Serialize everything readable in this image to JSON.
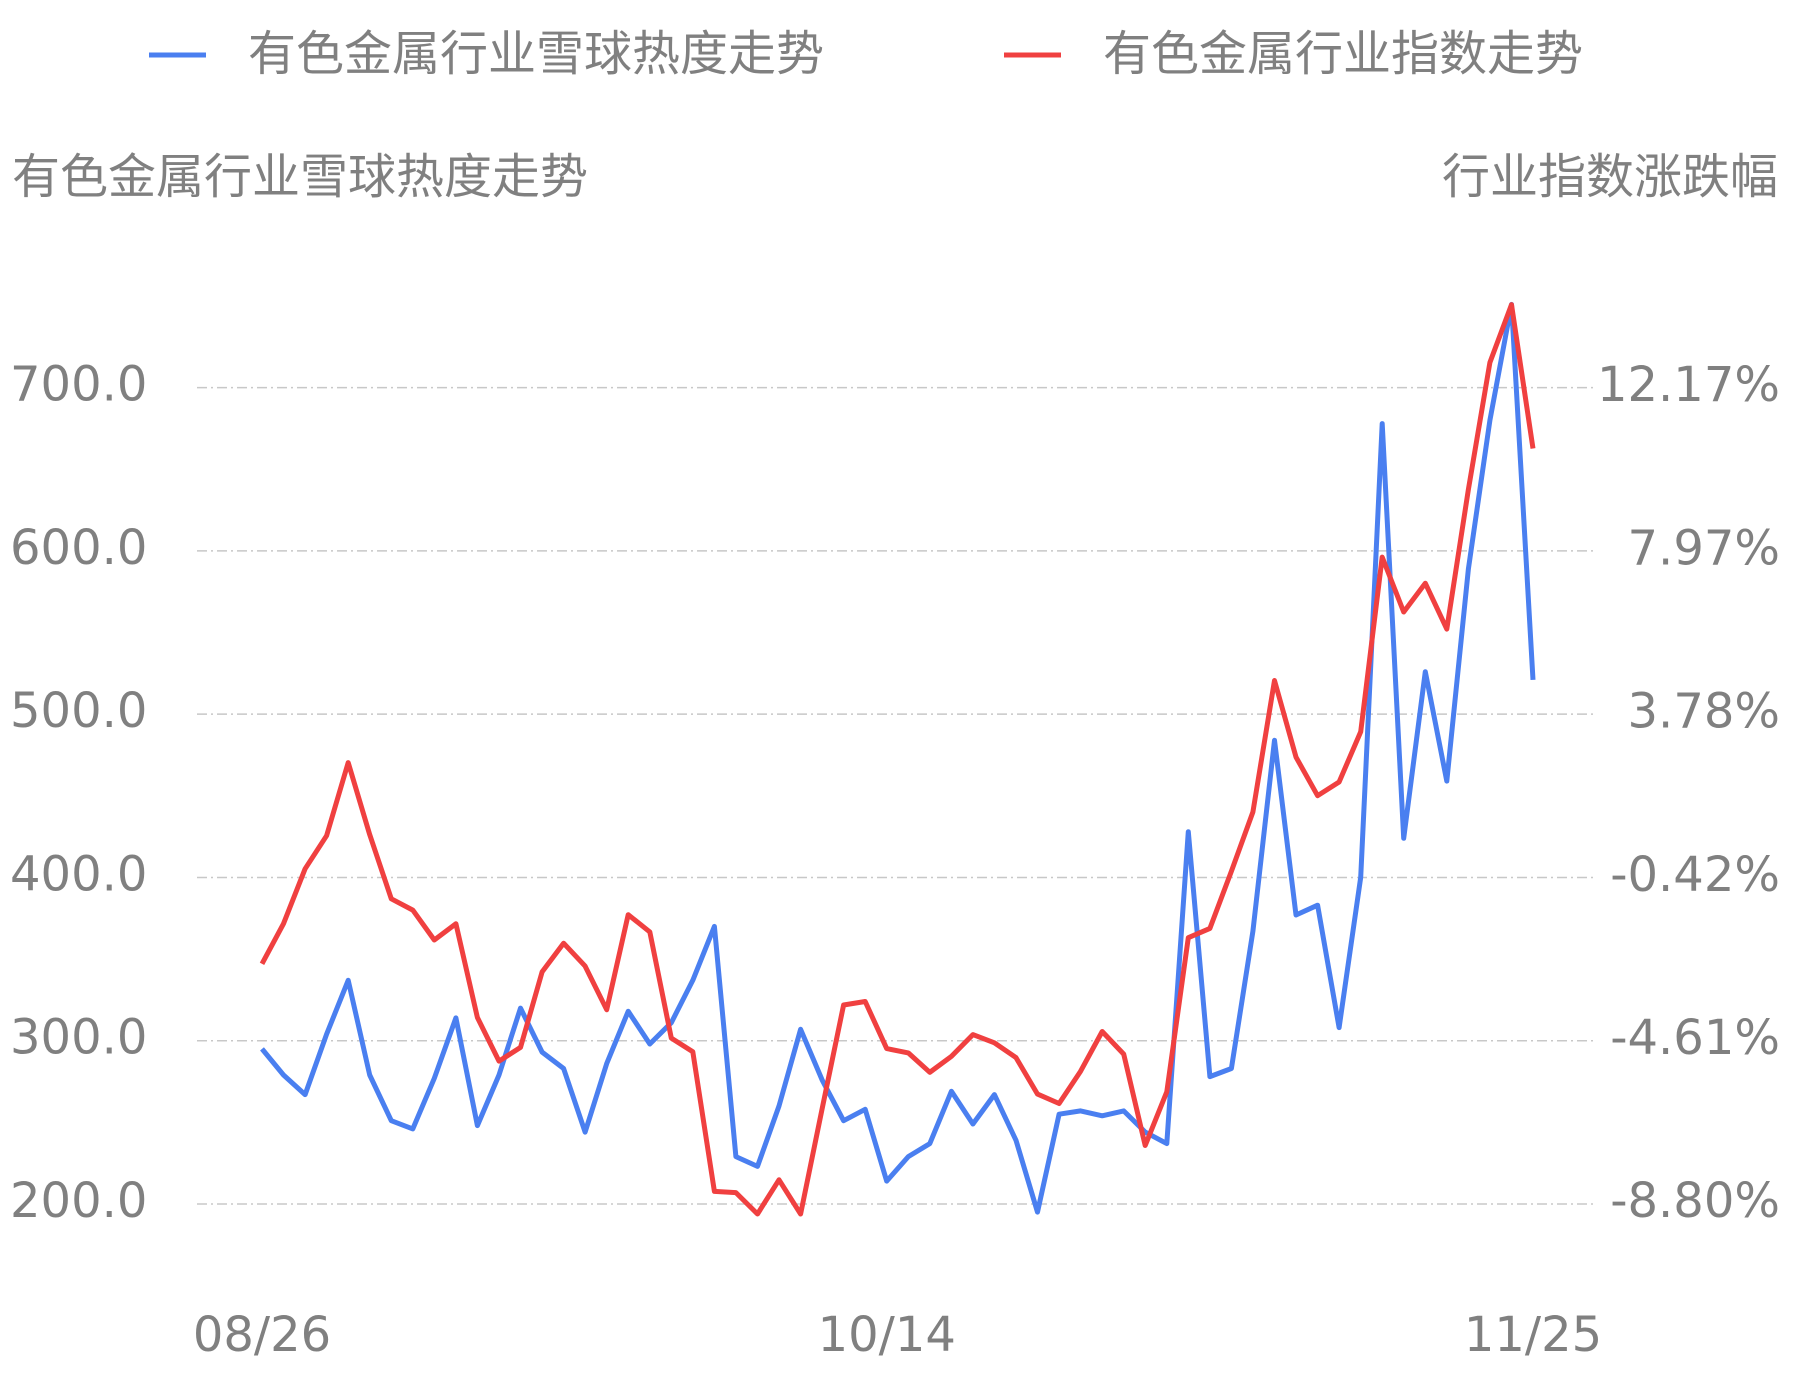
{
  "chart_data": {
    "type": "line",
    "y_label": "有色金属行业雪球热度走势",
    "y2_label": "行业指数涨跌幅",
    "categories": [
      "08/26",
      null,
      null,
      null,
      null,
      null,
      null,
      null,
      null,
      null,
      null,
      null,
      null,
      null,
      null,
      null,
      null,
      null,
      null,
      null,
      null,
      null,
      null,
      null,
      null,
      null,
      null,
      null,
      null,
      "10/14",
      null,
      null,
      null,
      null,
      null,
      null,
      null,
      null,
      null,
      null,
      null,
      null,
      null,
      null,
      null,
      null,
      null,
      null,
      null,
      null,
      null,
      null,
      null,
      null,
      null,
      null,
      null,
      null,
      null,
      "11/25"
    ],
    "series": [
      {
        "name": "有色金属行业雪球热度走势",
        "color": "#4a7ff0",
        "axis": "y",
        "values": [
          295,
          279,
          267,
          304,
          337,
          279,
          251,
          246,
          277,
          314,
          248,
          279,
          320,
          293,
          283,
          244,
          286,
          318,
          298,
          311,
          337,
          370,
          229,
          223,
          260,
          307,
          276,
          251,
          258,
          214,
          229,
          237,
          269,
          249,
          267,
          239,
          195,
          255,
          257,
          254,
          257,
          244,
          237,
          428,
          278,
          283,
          367,
          484,
          377,
          383,
          308,
          400,
          678,
          424,
          526,
          459,
          589,
          680,
          751,
          521
        ]
      },
      {
        "name": "有色金属行业指数走势",
        "color": "#f04040",
        "axis": "y2",
        "values": [
          -2.63,
          -1.6,
          -0.19,
          0.66,
          2.54,
          0.69,
          -0.96,
          -1.25,
          -2.02,
          -1.6,
          -4.01,
          -5.13,
          -4.78,
          -2.84,
          -2.1,
          -2.69,
          -3.81,
          -1.37,
          -1.81,
          -4.54,
          -4.89,
          -8.48,
          -8.51,
          -9.06,
          -8.18,
          -9.06,
          -6.36,
          -3.69,
          -3.6,
          -4.81,
          -4.92,
          -5.42,
          -5.01,
          -4.45,
          -4.66,
          -5.04,
          -5.98,
          -6.22,
          -5.39,
          -4.37,
          -4.95,
          -7.3,
          -5.92,
          -1.96,
          -1.72,
          -0.25,
          1.27,
          4.65,
          2.68,
          1.69,
          2.04,
          3.33,
          7.82,
          6.41,
          7.15,
          5.97,
          9.56,
          12.82,
          14.31,
          10.61
        ]
      }
    ],
    "ylim": [
      150,
      800
    ],
    "yticks": [
      {
        "value": 200,
        "label": "200.0"
      },
      {
        "value": 300,
        "label": "300.0"
      },
      {
        "value": 400,
        "label": "400.0"
      },
      {
        "value": 500,
        "label": "500.0"
      },
      {
        "value": 600,
        "label": "600.0"
      },
      {
        "value": 700,
        "label": "700.0"
      }
    ],
    "y2lim": [
      -10.9,
      16.37
    ],
    "y2ticks": [
      {
        "value": -8.8,
        "label": "-8.80%"
      },
      {
        "value": -4.61,
        "label": "-4.61%"
      },
      {
        "value": -0.42,
        "label": "-0.42%"
      },
      {
        "value": 3.78,
        "label": "3.78%"
      },
      {
        "value": 7.97,
        "label": "7.97%"
      },
      {
        "value": 12.17,
        "label": "12.17%"
      }
    ],
    "grid": true,
    "legend": "top"
  }
}
